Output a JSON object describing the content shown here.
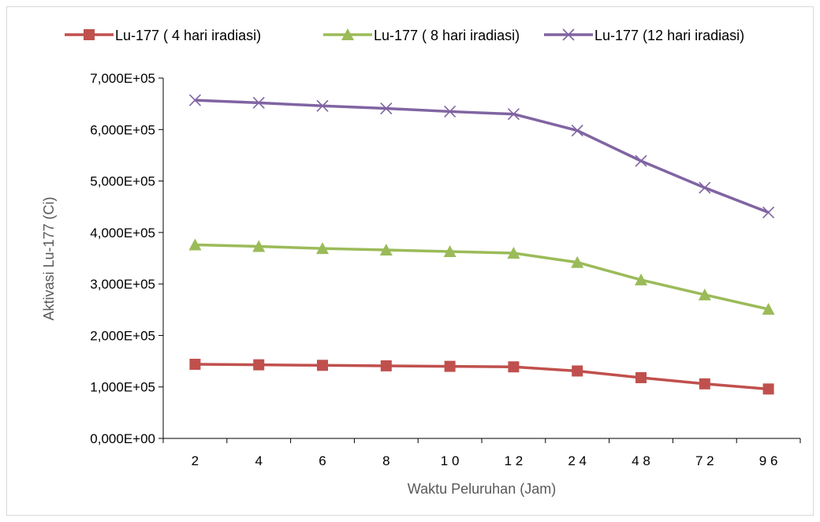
{
  "chart_data": {
    "type": "line",
    "categories": [
      "2",
      "4",
      "6",
      "8",
      "10",
      "12",
      "24",
      "48",
      "72",
      "96"
    ],
    "category_display": [
      "2",
      "4",
      "6",
      "8",
      "1 0",
      "1 2",
      "2 4",
      "4 8",
      "7 2",
      "9 6"
    ],
    "series": [
      {
        "name": "Lu-177 ( 4 hari iradiasi)",
        "color": "#c0504d",
        "marker": "square",
        "values": [
          144000,
          143000,
          142000,
          141000,
          140000,
          139000,
          131000,
          118000,
          106000,
          96000
        ]
      },
      {
        "name": "Lu-177 ( 8 hari iradiasi)",
        "color": "#9bbb59",
        "marker": "triangle",
        "values": [
          376000,
          373000,
          369000,
          366000,
          363000,
          360000,
          342000,
          308000,
          279000,
          251000
        ]
      },
      {
        "name": "Lu-177 (12 hari iradiasi)",
        "color": "#8064a2",
        "marker": "x",
        "values": [
          657000,
          652000,
          646000,
          641000,
          635000,
          630000,
          598000,
          539000,
          487000,
          439000
        ]
      }
    ],
    "title": "",
    "xlabel": "Waktu Peluruhan (Jam)",
    "ylabel": "Aktivasi Lu-177 (Ci)",
    "ylim": [
      0,
      700000
    ],
    "yticks": [
      0,
      100000,
      200000,
      300000,
      400000,
      500000,
      600000,
      700000
    ],
    "ytick_labels": [
      "0,000E+00",
      "1,000E+05",
      "2,000E+05",
      "3,000E+05",
      "4,000E+05",
      "5,000E+05",
      "6,000E+05",
      "7,000E+05"
    ],
    "grid": false,
    "legend_position": "top"
  }
}
